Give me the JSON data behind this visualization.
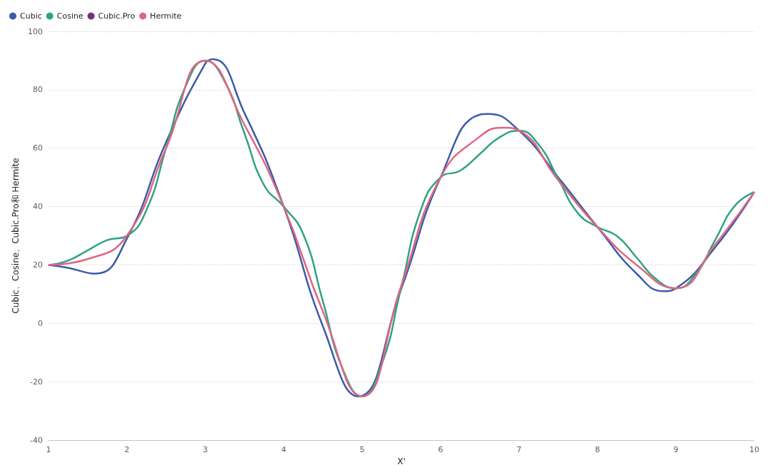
{
  "chart_data": {
    "type": "line",
    "xlabel": "X'",
    "ylabel": "Cubic、Cosine、Cubic.Pro和 Hermite",
    "xlim": [
      1,
      10
    ],
    "xticks": [
      1,
      2,
      3,
      4,
      5,
      6,
      7,
      8,
      9,
      10
    ],
    "ylim": [
      -40,
      100
    ],
    "yticks": [
      -40,
      -20,
      0,
      20,
      40,
      60,
      80,
      100
    ],
    "grid": "y",
    "legend": "top left",
    "marker": "none",
    "line_style": "solid",
    "series": [
      {
        "name": "Cubic",
        "color": "#3a5ba9",
        "x": [
          1,
          1.25,
          1.6,
          2,
          2.5,
          3,
          3.1,
          3.5,
          4,
          4.5,
          4.95,
          5.5,
          6,
          6.5,
          6.6,
          7,
          7.5,
          8,
          8.5,
          8.85,
          9,
          9.5,
          10
        ],
        "values": [
          20,
          19,
          17,
          29,
          62,
          89,
          90.5,
          72,
          40,
          -1,
          -25,
          12,
          50,
          71.5,
          71.7,
          66,
          50,
          33,
          17,
          11,
          12,
          26,
          45
        ]
      },
      {
        "name": "Cosine",
        "color": "#2fa385",
        "x": [
          1,
          1.25,
          1.5,
          1.75,
          2,
          2.25,
          2.5,
          2.75,
          3,
          3.25,
          3.5,
          3.75,
          4,
          4.25,
          4.5,
          4.75,
          5,
          5.25,
          5.5,
          5.75,
          6,
          6.25,
          6.5,
          6.75,
          7,
          7.25,
          7.5,
          7.75,
          8,
          8.25,
          8.5,
          8.75,
          9,
          9.25,
          9.5,
          9.75,
          10
        ],
        "values": [
          20,
          21.5,
          25,
          28.5,
          30,
          38.8,
          60,
          81.2,
          90,
          82.7,
          65,
          47.3,
          40,
          30.5,
          7.5,
          -15.5,
          -25,
          -14,
          12.5,
          39,
          50,
          52.3,
          58,
          63.7,
          66,
          61.2,
          49.5,
          37.8,
          33,
          29.9,
          22.5,
          15.1,
          12,
          16.8,
          28.5,
          40.2,
          45
        ]
      },
      {
        "name": "Cubic.Pro",
        "color": "#7b2c83"
      },
      {
        "name": "Hermite",
        "color": "#e0667f",
        "x": [
          1,
          1.5,
          2,
          2.5,
          3,
          3.5,
          4,
          4.5,
          5,
          5.5,
          6,
          6.5,
          6.8,
          7,
          7.5,
          8,
          8.5,
          9,
          9.5,
          10
        ],
        "values": [
          20,
          22,
          30,
          60,
          90,
          68,
          40,
          4,
          -25,
          13,
          50,
          64,
          67,
          66,
          49,
          33,
          20,
          12,
          27,
          45
        ]
      }
    ]
  }
}
